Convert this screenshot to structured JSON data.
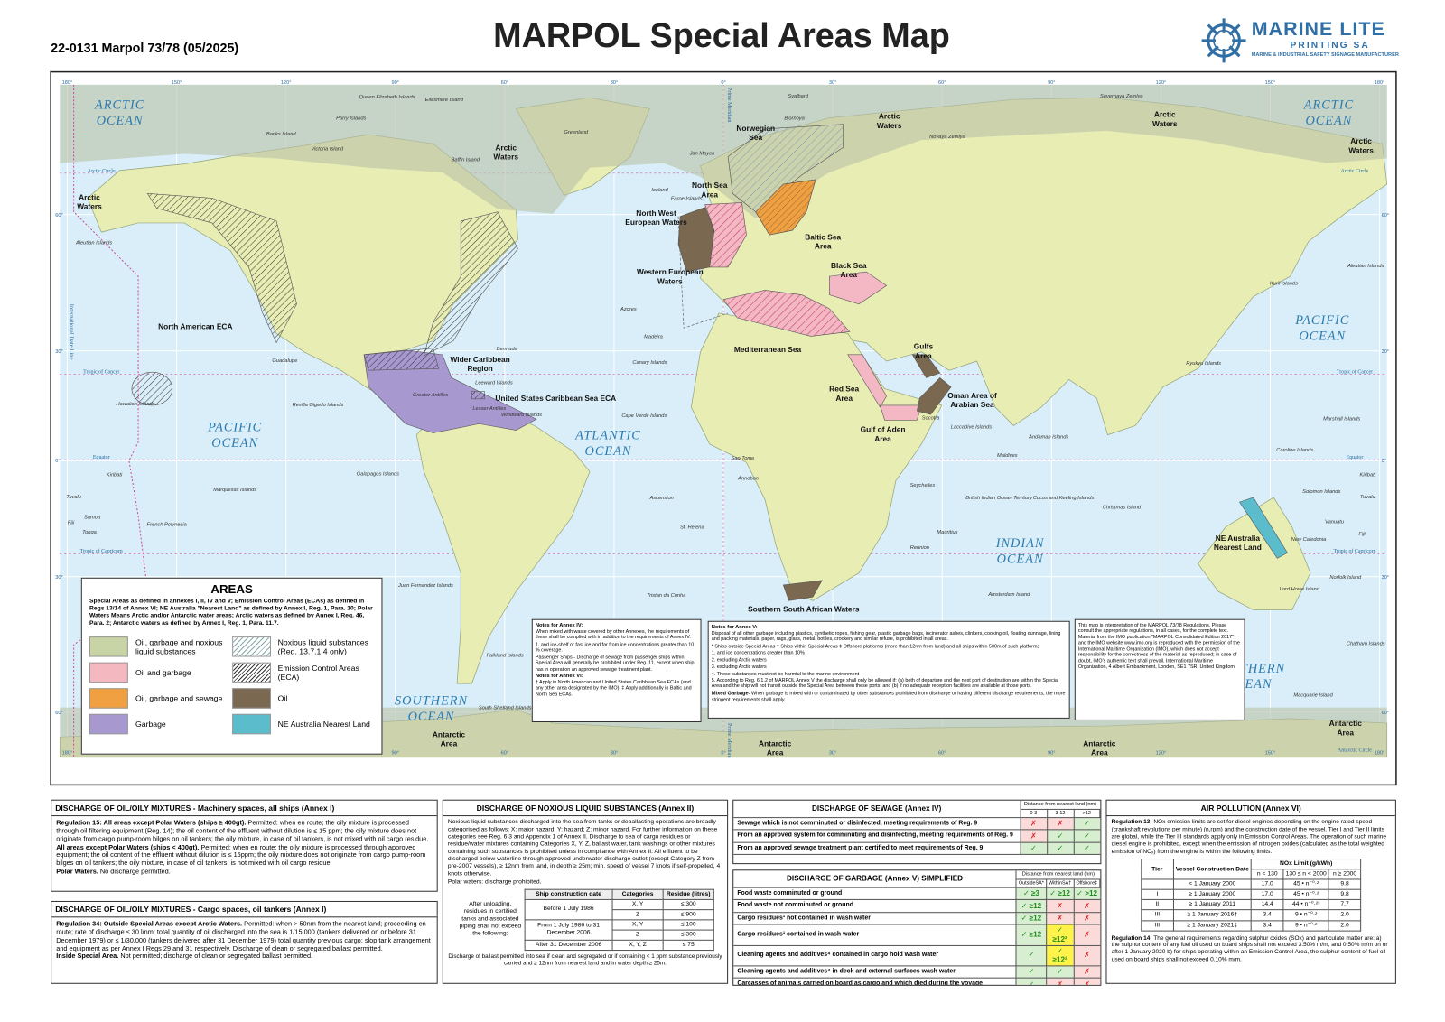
{
  "header": {
    "code": "22-0131 Marpol 73/78 (05/2025)",
    "title": "MARPOL Special Areas Map",
    "logo_name": "MARINE LITE",
    "logo_sub": "PRINTING SA",
    "logo_tagline": "MARINE & INDUSTRIAL SAFETY SIGNAGE MANUFACTURER"
  },
  "map": {
    "lon_labels": [
      "180°",
      "150°",
      "120°",
      "90°",
      "60°",
      "30°",
      "0°",
      "30°",
      "60°",
      "90°",
      "120°",
      "150°",
      "180°"
    ],
    "lat_labels": [
      "60°",
      "30°",
      "0°",
      "30°",
      "60°"
    ],
    "lines": [
      "Arctic Circle",
      "Tropic of Cancer",
      "Equator",
      "Tropic of Capricorn",
      "Antarctic Circle"
    ],
    "prime_meridian": "Prime Meridian",
    "date_line": "International Date Line",
    "oceans": [
      "ARCTIC OCEAN",
      "ARCTIC OCEAN",
      "PACIFIC OCEAN",
      "PACIFIC OCEAN",
      "ATLANTIC OCEAN",
      "INDIAN OCEAN",
      "SOUTHERN OCEAN",
      "SOUTHERN OCEAN"
    ],
    "areas": [
      "Norwegian Sea",
      "North Sea Area",
      "North West European Waters",
      "Baltic Sea Area",
      "Western European Waters",
      "Black Sea Area",
      "Mediterranean Sea",
      "Gulfs Area",
      "Red Sea Area",
      "Oman Area of Arabian Sea",
      "Gulf of Aden Area",
      "Wider Caribbean Region",
      "United States Caribbean Sea ECA",
      "North American ECA",
      "Southern South African Waters",
      "NE Australia Nearest Land",
      "Arctic Waters",
      "Arctic Waters",
      "Arctic Waters",
      "Arctic Waters",
      "Arctic Waters",
      "Antarctic Area",
      "Antarctic Area",
      "Antarctic Area",
      "Antarctic Area"
    ],
    "places": [
      "Queen Elizabeth Islands",
      "Ellesmere Island",
      "Parry Islands",
      "Banks Island",
      "Victoria Island",
      "Baffin Island",
      "Greenland",
      "Svalbard",
      "Bjornoya",
      "Jan Mayen",
      "Iceland",
      "Faroe Islands",
      "Novaya Zemlya",
      "Severnaya Zemlya",
      "Aleutian Islands",
      "Guadalupe",
      "Revilla Gigedo Islands",
      "Hawaiian Islands",
      "Bermuda",
      "Azores",
      "Madeira",
      "Canary Islands",
      "Cape Verde Islands",
      "Leeward Islands",
      "Greater Antilles",
      "Lesser Antilles",
      "Windward Islands",
      "Galapagos Islands",
      "Kiribati",
      "Tuvalu",
      "Samoa",
      "Fiji",
      "Tonga",
      "French Polynesia",
      "Marquesas Islands",
      "Sao Tome",
      "Annobon",
      "Ascension",
      "St. Helena",
      "Tristan da Cunha",
      "Juan Fernandez Islands",
      "Falkland Islands",
      "South Shetland Islands",
      "Seychelles",
      "Socotra",
      "Laccadive Islands",
      "Maldives",
      "Andaman Islands",
      "British Indian Ocean Territory",
      "Cocos and Keeling Islands",
      "Christmas Island",
      "Mauritius",
      "Reunion",
      "Amsterdam Island",
      "Kuril Islands",
      "Ryukyu Islands",
      "Marshall Islands",
      "Caroline Islands",
      "Solomon Islands",
      "Vanuatu",
      "New Caledonia",
      "Fiji",
      "Tuvalu",
      "Kiribati",
      "Norfolk Island",
      "Lord Howe Island",
      "Chatham Islands",
      "Macquarie Island",
      "Aleutian Islands"
    ]
  },
  "legend": {
    "title": "AREAS",
    "description": "Special Areas as defined in annexes I, II, IV and V; Emission Control Areas (ECAs) as defined in Regs 13/14 of Annex VI; NE Australia \"Nearest Land\" as defined by Annex I, Reg. 1, Para. 10; Polar Waters Means Arctic and/or Antarctic water areas; Arctic waters as defined by Annex I, Reg. 46, Para. 2; Antarctic waters as defined by Annex I, Reg. 1, Para. 11.7.",
    "items": [
      "Oil, garbage and noxious liquid substances",
      "Noxious liquid substances (Reg. 13.7.1.4 only)",
      "Oil and garbage",
      "Emission Control Areas (ECA)",
      "Oil, garbage and sewage",
      "Oil",
      "Garbage",
      "NE Australia Nearest Land"
    ]
  },
  "notes_annex_iv": {
    "title": "Notes for Annex IV:",
    "paragraphs": [
      "When mixed with waste covered by other Annexes, the requirements of these shall be complied with in addition to the requirements of Annex IV.",
      "1. and ice-shelf or fast ice and far from ice concentrations greater than 10 % coverage.",
      "Passenger Ships - Discharge of sewage from passenger ships within Special Area will generally be prohibited under Reg. 11, except when ship has in operation an approved sewage treatment plant."
    ],
    "title_vi": "Notes for Annex VI:",
    "paragraphs_vi": [
      "† Apply in North American and United States Caribbean Sea ECAs (and any other area designated by the IMO). ‡ Apply additionally in Baltic and North Sea ECAs."
    ]
  },
  "notes_annex_v": {
    "title": "Notes for Annex V:",
    "paragraphs": [
      "Disposal of all other garbage including plastics, synthetic ropes, fishing gear, plastic garbage bags, incinerator ashes, clinkers, cooking oil, floating dunnage, lining and packing materials, paper, rags, glass, metal, bottles, crockery and similar refuse, is prohibited in all areas.",
      "* Ships outside Special Areas † Ships within Special Areas ‡ Offshore platforms (more than 12nm from land) and all ships within 500m of such platforms",
      "1. and ice concentrations greater than 10%",
      "2. excluding Arctic waters",
      "3. excluding Arctic waters",
      "4. These substances must not be harmful to the marine environment",
      "5. According to Reg. 6.1.2 of MARPOL Annex V the discharge shall only be allowed if: (a) both of departure and the next port of destination are within the Special Area and the ship will not transit outside the Special Area between these ports; and (b) if no adequate reception facilities are available at those ports."
    ],
    "mixed_lead": "Mixed Garbage",
    "mixed_text": "- When garbage is mixed with or contaminated by other substances prohibited from discharge or having different discharge requirements, the more stringent requirements shall apply."
  },
  "disclaimer": "This map is interpretation of the MARPOL 73/78 Regulations. Please consult the appropriate regulations, in all cases, for the complete text. Material from the IMO publication \"MARPOL Consolidated Edition 2017\" and the IMO website www.imo.org is reproduced with the permission of the International Maritime Organization (IMO), which does not accept responsibility for the correctness of the material as reproduced; in case of doubt, IMO's authentic text shall prevail. International Maritime Organization, 4 Albert Embankment, London, SE1 7SR, United Kingdom.",
  "oil_machinery": {
    "heading": "DISCHARGE OF OIL/OILY MIXTURES - Machinery spaces, all ships (Annex I)",
    "paragraphs": [
      {
        "lead": "Regulation 15: All areas except Polar Waters (ships ≥ 400gt).",
        "text": "Permitted: when en route; the oily mixture is processed through oil filtering equipment (Reg. 14); the oil content of the effluent without dilution is ≤ 15 ppm; the oily mixture does not originate from cargo pump-room bilges on oil tankers; the oily mixture, in case of oil tankers, is not mixed with oil cargo residue."
      },
      {
        "lead": "All areas except Polar Waters (ships < 400gt).",
        "text": "Permitted: when en route; the oily mixture is processed through approved equipment; the oil content of the effluent without dilution is ≤ 15ppm; the oily mixture does not originate from cargo pump-room bilges on oil tankers; the oily mixture, in case of oil tankers, is not mixed with oil cargo residue."
      },
      {
        "lead": "Polar Waters.",
        "text": "No discharge permitted."
      }
    ]
  },
  "oil_cargo": {
    "heading": "DISCHARGE OF OIL/OILY MIXTURES - Cargo spaces, oil tankers (Annex I)",
    "paragraphs": [
      {
        "lead": "Regulation 34: Outside Special Areas except Arctic Waters.",
        "text": "Permitted: when > 50nm from the nearest land; proceeding en route; rate of discharge ≤ 30 l/nm; total quantity of oil discharged into the sea is 1/15,000 (tankers delivered on or before 31 December 1979) or ≤ 1/30,000 (tankers delivered after 31 December 1979) total quantity previous cargo; slop tank arrangement and equipment as per Annex I Regs 29 and 31 respectively. Discharge of clean or segregated ballast permitted."
      },
      {
        "lead": "Inside Special Area.",
        "text": "Not permitted; discharge of clean or segregated ballast permitted."
      }
    ]
  },
  "noxious": {
    "heading": "DISCHARGE OF NOXIOUS LIQUID SUBSTANCES (Annex II)",
    "text": "Noxious liquid substances discharged into the sea from tanks or deballasting operations are broadly categorised as follows: X: major hazard; Y: hazard; Z: minor hazard. For further information on these categories see Reg. 6.3 and Appendix 1 of Annex II. Discharge to sea of cargo residues or residue/water mixtures containing Categories X, Y, Z, ballast water, tank washings or other mixtures containing such substances is prohibited unless in compliance with Annex II. All effluent to be discharged below waterline through approved underwater discharge outlet (except Category Z from pre-2007 vessels), ≥ 12nm from land, in depth ≥ 25m; min. speed of vessel 7 knots if self-propelled, 4 knots otherwise.",
    "polar": "Polar waters: discharge prohibited.",
    "table_label": "After unloading, residues in certified tanks and associated piping shall not exceed the following:",
    "columns": [
      "Ship construction date",
      "Categories",
      "Residue (litres)"
    ],
    "groups": [
      {
        "date": "Before 1 July 1986",
        "rows": [
          [
            "X, Y",
            "≤ 300"
          ],
          [
            "Z",
            "≤ 900"
          ]
        ]
      },
      {
        "date": "From 1 July 1986 to 31 December 2006",
        "rows": [
          [
            "X, Y",
            "≤ 100"
          ],
          [
            "Z",
            "≤ 300"
          ]
        ]
      },
      {
        "date": "After 31 December 2006",
        "rows": [
          [
            "X, Y, Z",
            "≤ 75"
          ]
        ]
      }
    ],
    "footer": "Discharge of ballast permitted into sea if clean and segregated or if containing < 1 ppm substance previously carried and ≥ 12nm from nearest land and in water depth ≥ 25m."
  },
  "sewage": {
    "heading": "DISCHARGE OF SEWAGE (Annex IV)",
    "distance_header": "Distance from nearest land (nm)",
    "columns": [
      "0-3",
      "3-12",
      ">12"
    ],
    "rows": [
      {
        "label": "Sewage which is not comminuted or disinfected, meeting requirements of Reg. 9",
        "cells": [
          "✗",
          "✗",
          "✓"
        ]
      },
      {
        "label": "From an approved system for comminuting and disinfecting, meeting requirements of Reg. 9",
        "cells": [
          "✗",
          "✓",
          "✓"
        ]
      },
      {
        "label": "From an approved sewage treatment plant certified to meet requirements of Reg. 9",
        "cells": [
          "✓",
          "✓",
          "✓"
        ]
      }
    ]
  },
  "garbage": {
    "heading": "DISCHARGE OF GARBAGE (Annex V) SIMPLIFIED",
    "distance_header": "Distance from nearest land (nm)",
    "columns": [
      "OutsideSA*",
      "WithinSA†",
      "Offshore‡"
    ],
    "rows": [
      {
        "label": "Food waste comminuted or ground",
        "cells": [
          "✓ ≥3",
          "✓ ≥12",
          "✓ >12"
        ]
      },
      {
        "label": "Food waste not comminuted or ground",
        "cells": [
          "✓ ≥12",
          "✗",
          "✗"
        ]
      },
      {
        "label": "Cargo residues¹ not contained in wash water",
        "cells": [
          "✓ ≥12",
          "✗",
          "✗"
        ]
      },
      {
        "label": "Cargo residues¹ contained in wash water",
        "cells": [
          "✓ ≥12",
          "✓ ≥12²",
          "✗"
        ]
      },
      {
        "label": "Cleaning agents and additives⁴ contained in cargo hold wash water",
        "cells": [
          "✓",
          "✓ ≥12²",
          "✗"
        ]
      },
      {
        "label": "Cleaning agents and additives⁴ in deck and external surfaces wash water",
        "cells": [
          "✓",
          "✓",
          "✗"
        ]
      },
      {
        "label": "Carcasses of animals carried on board as cargo and which died during the voyage",
        "cells": [
          "✓",
          "✗",
          "✗"
        ]
      }
    ]
  },
  "air": {
    "heading": "AIR POLLUTION (Annex VI)",
    "reg13_lead": "Regulation 13:",
    "reg13_text": "NOx emission limits are set for diesel engines depending on the engine rated speed (crankshaft revolutions per minute) (n,rpm) and the construction date of the vessel. Tier I and Tier II limits are global, while the Tier III standards apply only in Emission Control Areas. The operation of such marine diesel engine is prohibited, except when the emission of nitrogen oxides (calculated as the total weighted emission of NOₓ) from the engine is within the following limits.",
    "columns": [
      "Tier",
      "Vessel Construction Date",
      "NOx Limit (g/kWh)"
    ],
    "subcolumns": [
      "n < 130",
      "130 ≤ n < 2000",
      "n ≥ 2000"
    ],
    "rows": [
      [
        null,
        "< 1 January 2000",
        "17.0",
        "45 • n⁻⁰·²",
        "9.8"
      ],
      [
        "I",
        "≥ 1 January 2000",
        "17.0",
        "45 • n⁻⁰·²",
        "9.8"
      ],
      [
        "II",
        "≥ 1 January 2011",
        "14.4",
        "44 • n⁻⁰·²³",
        "7.7"
      ],
      [
        "III",
        "≥ 1 January 2016†",
        "3.4",
        "9 • n⁻⁰·²",
        "2.0"
      ],
      [
        "III",
        "≥ 1 January 2021‡",
        "3.4",
        "9 • n⁻⁰·²",
        "2.0"
      ]
    ],
    "reg14_lead": "Regulation 14:",
    "reg14_text": "The general requirements regarding sulphur oxides (SOx) and particulate matter are: a) the sulphur content of any fuel oil used on board ships shall not exceed 3.50% m/m, and 0.50% m/m on or after 1 January 2020 b) for ships operating within an Emission Control Area, the sulphur content of fuel oil used on board ships shall not exceed 0.10% m/m."
  }
}
